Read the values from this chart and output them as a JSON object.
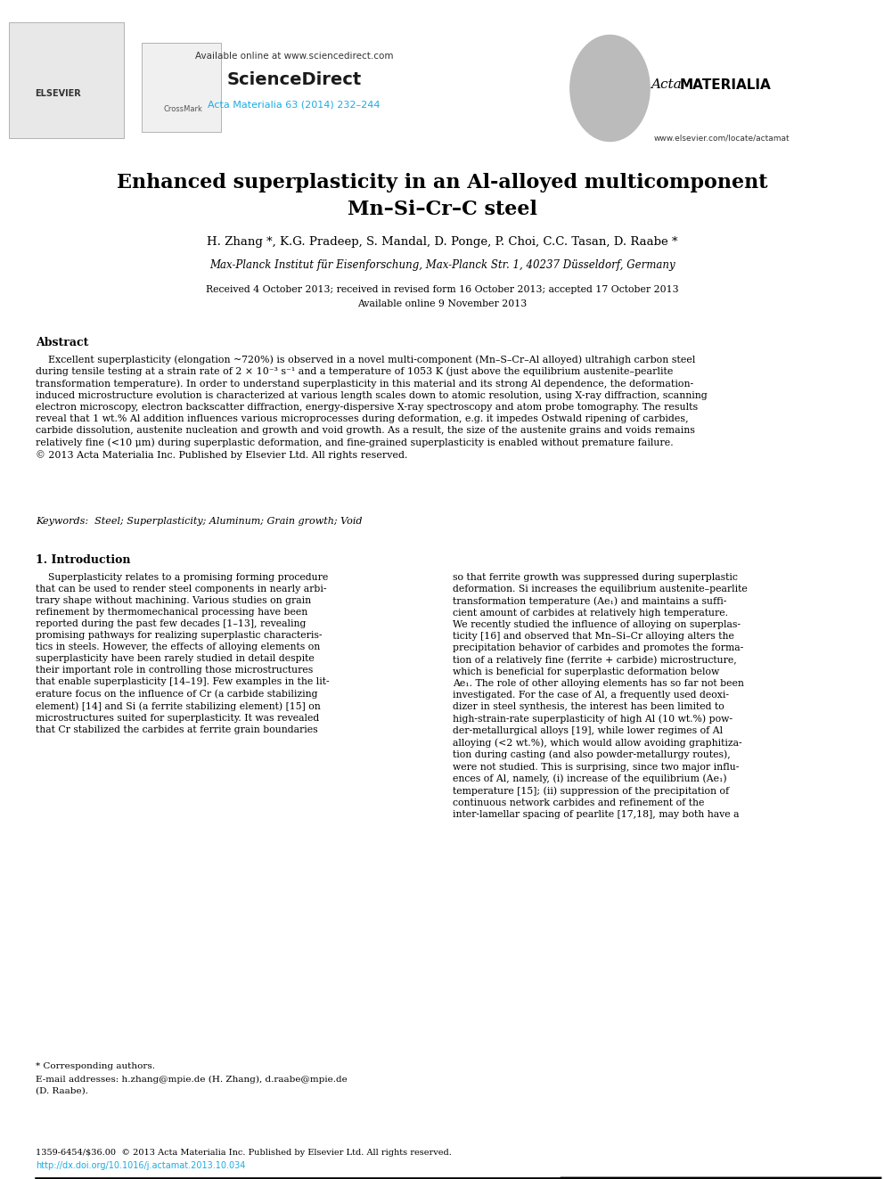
{
  "bg_color": "#ffffff",
  "header_available_online": "Available online at www.sciencedirect.com",
  "header_sciencedirect": "ScienceDirect",
  "header_journal": "Acta Materialia 63 (2014) 232–244",
  "header_website": "www.elsevier.com/locate/actamat",
  "title_line1": "Enhanced superplasticity in an Al-alloyed multicomponent",
  "title_line2": "Mn–Si–Cr–C steel",
  "authors": "H. Zhang *, K.G. Pradeep, S. Mandal, D. Ponge, P. Choi, C.C. Tasan, D. Raabe *",
  "affiliation": "Max-Planck Institut für Eisenforschung, Max-Planck Str. 1, 40237 Düsseldorf, Germany",
  "received": "Received 4 October 2013; received in revised form 16 October 2013; accepted 17 October 2013",
  "available_online": "Available online 9 November 2013",
  "abstract_heading": "Abstract",
  "abstract_text": "    Excellent superplasticity (elongation ~720%) is observed in a novel multi-component (Mn–S–Cr–Al alloyed) ultrahigh carbon steel\nduring tensile testing at a strain rate of 2 × 10⁻³ s⁻¹ and a temperature of 1053 K (just above the equilibrium austenite–pearlite\ntransformation temperature). In order to understand superplasticity in this material and its strong Al dependence, the deformation-\ninduced microstructure evolution is characterized at various length scales down to atomic resolution, using X-ray diffraction, scanning\nelectron microscopy, electron backscatter diffraction, energy-dispersive X-ray spectroscopy and atom probe tomography. The results\nreveal that 1 wt.% Al addition influences various microprocesses during deformation, e.g. it impedes Ostwald ripening of carbides,\ncarbide dissolution, austenite nucleation and growth and void growth. As a result, the size of the austenite grains and voids remains\nrelatively fine (<10 μm) during superplastic deformation, and fine-grained superplasticity is enabled without premature failure.\n© 2013 Acta Materialia Inc. Published by Elsevier Ltd. All rights reserved.",
  "keywords": "Keywords:  Steel; Superplasticity; Aluminum; Grain growth; Void",
  "section1_heading": "1. Introduction",
  "section1_col1": "    Superplasticity relates to a promising forming procedure\nthat can be used to render steel components in nearly arbi-\ntrary shape without machining. Various studies on grain\nrefinement by thermomechanical processing have been\nreported during the past few decades [1–13], revealing\npromising pathways for realizing superplastic characteris-\ntics in steels. However, the effects of alloying elements on\nsuperplasticity have been rarely studied in detail despite\ntheir important role in controlling those microstructures\nthat enable superplasticity [14–19]. Few examples in the lit-\nerature focus on the influence of Cr (a carbide stabilizing\nelement) [14] and Si (a ferrite stabilizing element) [15] on\nmicrostructures suited for superplasticity. It was revealed\nthat Cr stabilized the carbides at ferrite grain boundaries",
  "section1_col2": "so that ferrite growth was suppressed during superplastic\ndeformation. Si increases the equilibrium austenite–pearlite\ntransformation temperature (Ae₁) and maintains a suffi-\ncient amount of carbides at relatively high temperature.\nWe recently studied the influence of alloying on superplas-\nticity [16] and observed that Mn–Si–Cr alloying alters the\nprecipitation behavior of carbides and promotes the forma-\ntion of a relatively fine (ferrite + carbide) microstructure,\nwhich is beneficial for superplastic deformation below\nAe₁. The role of other alloying elements has so far not been\ninvestigated. For the case of Al, a frequently used deoxi-\ndizer in steel synthesis, the interest has been limited to\nhigh-strain-rate superplasticity of high Al (10 wt.%) pow-\nder-metallurgical alloys [19], while lower regimes of Al\nalloying (<2 wt.%), which would allow avoiding graphitiza-\ntion during casting (and also powder-metallurgy routes),\nwere not studied. This is surprising, since two major influ-\nences of Al, namely, (i) increase of the equilibrium (Ae₁)\ntemperature [15]; (ii) suppression of the precipitation of\ncontinuous network carbides and refinement of the\ninter-lamellar spacing of pearlite [17,18], may both have a",
  "footnote_corresponding": "* Corresponding authors.",
  "footnote_email": "E-mail addresses: h.zhang@mpie.de (H. Zhang), d.raabe@mpie.de",
  "footnote_email2": "(D. Raabe).",
  "footer_issn": "1359-6454/$36.00  © 2013 Acta Materialia Inc. Published by Elsevier Ltd. All rights reserved.",
  "footer_doi": "http://dx.doi.org/10.1016/j.actamat.2013.10.034",
  "cyan_color": "#1aade3",
  "title_color": "#000000",
  "text_color": "#000000"
}
